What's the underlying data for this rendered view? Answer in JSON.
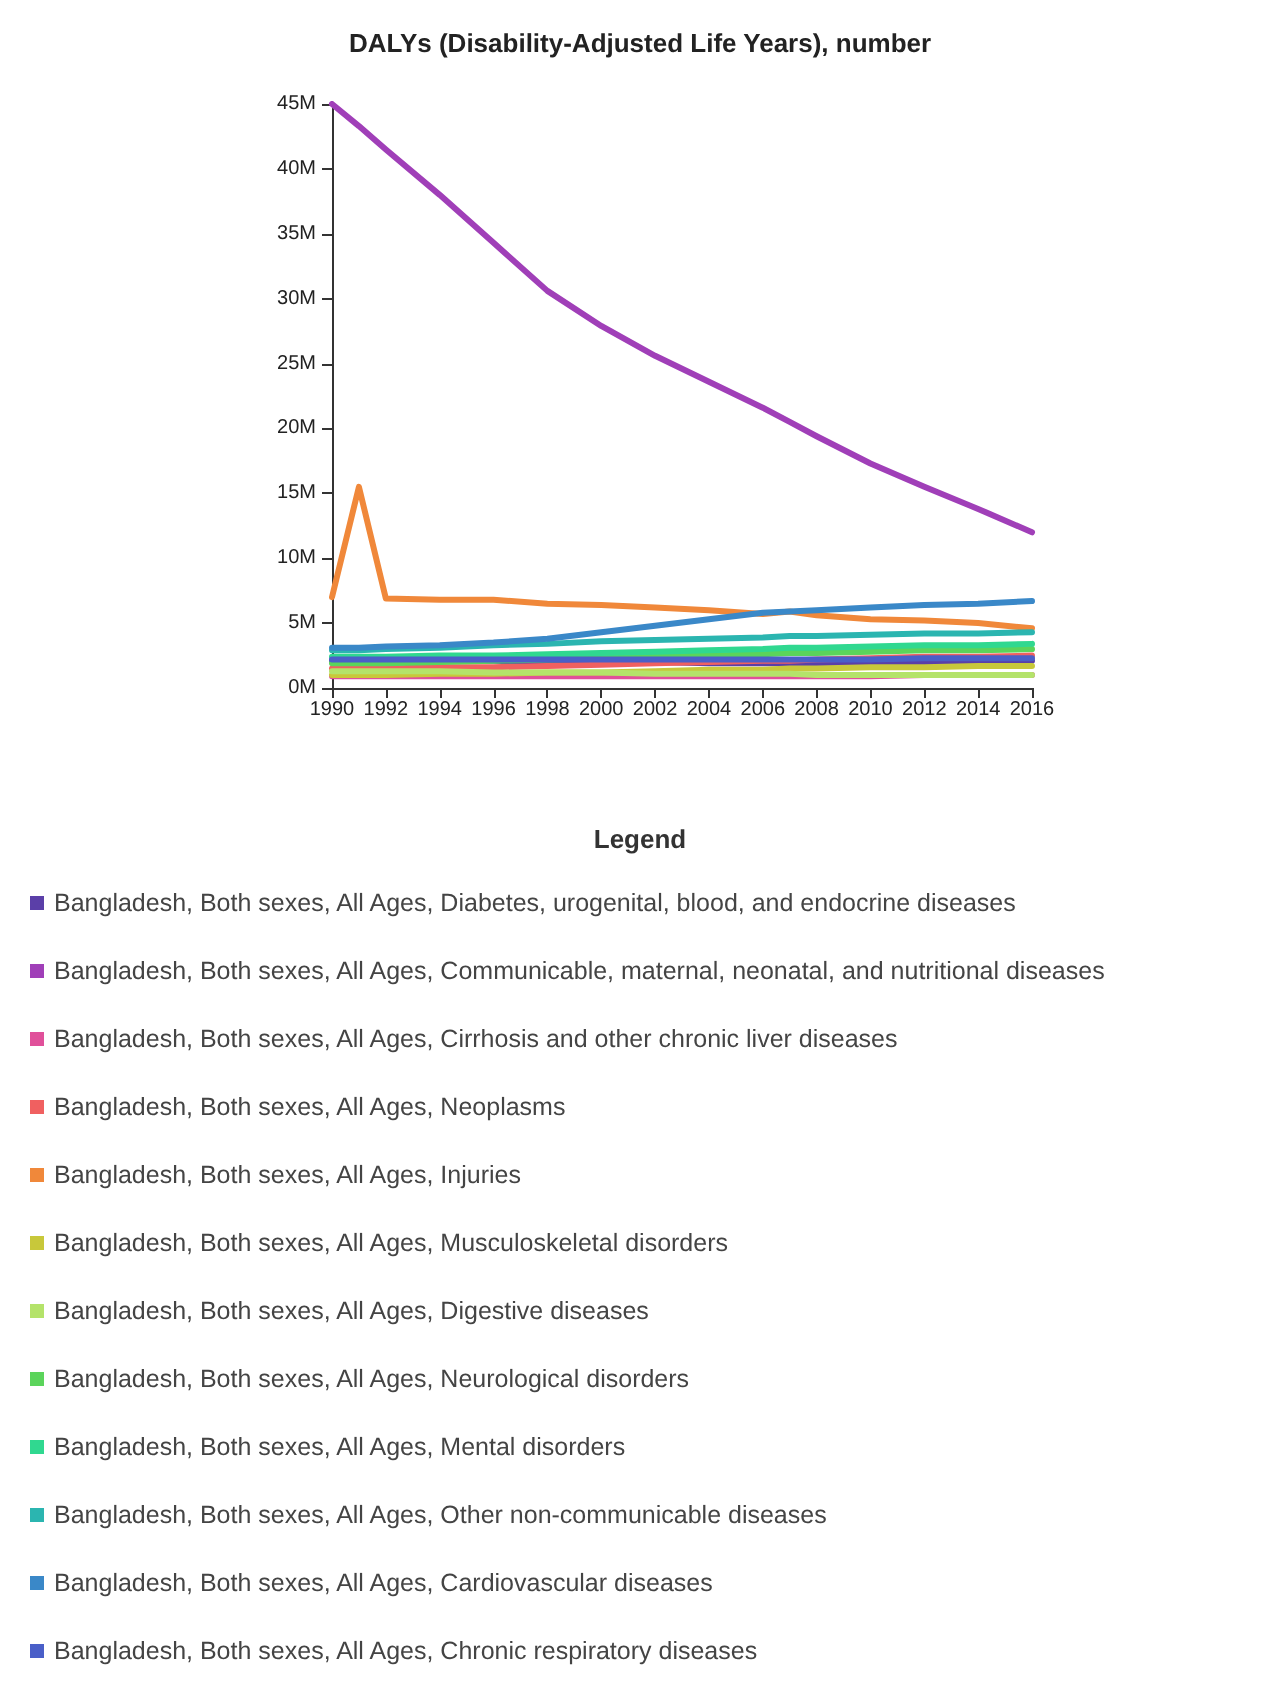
{
  "chart_data": {
    "type": "line",
    "title": "DALYs (Disability-Adjusted Life Years), number",
    "legend_title": "Legend",
    "legend": "bottom",
    "grid": false,
    "marker": "none",
    "line_style": "solid",
    "x": [
      1990,
      1991,
      1992,
      1994,
      1996,
      1998,
      2000,
      2002,
      2004,
      2006,
      2007,
      2008,
      2010,
      2012,
      2014,
      2016
    ],
    "xlim": [
      1990,
      2016
    ],
    "xticks": [
      1990,
      1992,
      1994,
      1996,
      1998,
      2000,
      2002,
      2004,
      2006,
      2008,
      2010,
      2012,
      2014,
      2016
    ],
    "ylim": [
      0,
      45
    ],
    "yticks": [
      {
        "value": 0,
        "label": "0M"
      },
      {
        "value": 5,
        "label": "5M"
      },
      {
        "value": 10,
        "label": "10M"
      },
      {
        "value": 15,
        "label": "15M"
      },
      {
        "value": 20,
        "label": "20M"
      },
      {
        "value": 25,
        "label": "25M"
      },
      {
        "value": 30,
        "label": "30M"
      },
      {
        "value": 35,
        "label": "35M"
      },
      {
        "value": 40,
        "label": "40M"
      },
      {
        "value": 45,
        "label": "45M"
      }
    ],
    "series": [
      {
        "name": "Bangladesh, Both sexes, All Ages, Diabetes, urogenital, blood, and endocrine diseases",
        "color": "#5b3fa8",
        "values": [
          2.1,
          2.1,
          2.1,
          2.1,
          2.1,
          2.0,
          2.0,
          2.0,
          1.9,
          1.9,
          1.9,
          1.9,
          1.9,
          2.0,
          2.0,
          2.1
        ]
      },
      {
        "name": "Bangladesh, Both sexes, All Ages, Communicable, maternal, neonatal, and nutritional diseases",
        "color": "#a03fb8",
        "values": [
          45,
          43.3,
          41.5,
          38,
          34.3,
          30.6,
          27.9,
          25.6,
          23.6,
          21.6,
          20.5,
          19.4,
          17.3,
          15.5,
          13.8,
          12
        ]
      },
      {
        "name": "Bangladesh, Both sexes, All Ages, Cirrhosis and other chronic liver diseases",
        "color": "#e0509a",
        "values": [
          0.9,
          0.9,
          0.9,
          0.9,
          0.9,
          0.9,
          0.9,
          0.9,
          0.9,
          0.9,
          0.9,
          0.9,
          0.9,
          1.0,
          1.0,
          1.0
        ]
      },
      {
        "name": "Bangladesh, Both sexes, All Ages, Neoplasms",
        "color": "#f06060",
        "values": [
          1.5,
          1.5,
          1.5,
          1.6,
          1.6,
          1.7,
          1.8,
          1.9,
          2.0,
          2.1,
          2.1,
          2.2,
          2.3,
          2.4,
          2.4,
          2.5
        ]
      },
      {
        "name": "Bangladesh, Both sexes, All Ages, Injuries",
        "color": "#f0883a",
        "values": [
          7,
          15.5,
          6.9,
          6.8,
          6.8,
          6.5,
          6.4,
          6.2,
          6.0,
          5.7,
          5.9,
          5.6,
          5.3,
          5.2,
          5.0,
          4.6
        ]
      },
      {
        "name": "Bangladesh, Both sexes, All Ages, Musculoskeletal disorders",
        "color": "#c8c83a",
        "values": [
          1.0,
          1.0,
          1.0,
          1.1,
          1.1,
          1.2,
          1.2,
          1.3,
          1.4,
          1.4,
          1.5,
          1.5,
          1.6,
          1.6,
          1.7,
          1.7
        ]
      },
      {
        "name": "Bangladesh, Both sexes, All Ages, Digestive diseases",
        "color": "#b4e36a",
        "values": [
          1.3,
          1.3,
          1.3,
          1.3,
          1.2,
          1.2,
          1.2,
          1.1,
          1.1,
          1.1,
          1.1,
          1.0,
          1.0,
          1.0,
          1.0,
          1.0
        ]
      },
      {
        "name": "Bangladesh, Both sexes, All Ages, Neurological disorders",
        "color": "#5bd45b",
        "values": [
          1.9,
          1.9,
          1.9,
          2.0,
          2.1,
          2.2,
          2.3,
          2.4,
          2.5,
          2.6,
          2.7,
          2.7,
          2.8,
          2.9,
          2.9,
          3.0
        ]
      },
      {
        "name": "Bangladesh, Both sexes, All Ages, Mental disorders",
        "color": "#30d890",
        "values": [
          2.4,
          2.4,
          2.4,
          2.5,
          2.5,
          2.6,
          2.7,
          2.8,
          2.9,
          3.0,
          3.1,
          3.1,
          3.2,
          3.3,
          3.3,
          3.4
        ]
      },
      {
        "name": "Bangladesh, Both sexes, All Ages, Other non-communicable diseases",
        "color": "#2bb5b0",
        "values": [
          2.9,
          2.9,
          3.0,
          3.1,
          3.3,
          3.4,
          3.6,
          3.7,
          3.8,
          3.9,
          4.0,
          4.0,
          4.1,
          4.2,
          4.2,
          4.3
        ]
      },
      {
        "name": "Bangladesh, Both sexes, All Ages, Cardiovascular diseases",
        "color": "#3a88c8",
        "values": [
          3.1,
          3.1,
          3.2,
          3.3,
          3.5,
          3.8,
          4.3,
          4.8,
          5.3,
          5.8,
          5.9,
          6.0,
          6.2,
          6.4,
          6.5,
          6.7
        ]
      },
      {
        "name": "Bangladesh, Both sexes, All Ages, Chronic respiratory diseases",
        "color": "#4a5fc8",
        "values": [
          2.2,
          2.2,
          2.2,
          2.2,
          2.2,
          2.2,
          2.2,
          2.2,
          2.2,
          2.2,
          2.2,
          2.2,
          2.2,
          2.3,
          2.3,
          2.3
        ]
      }
    ]
  }
}
